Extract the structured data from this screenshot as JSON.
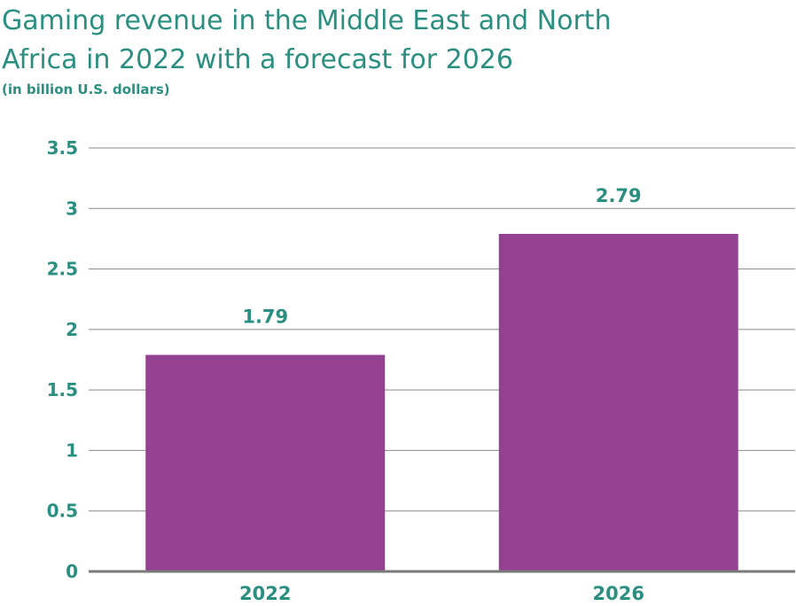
{
  "chart_data": {
    "type": "bar",
    "title_line1": "Gaming revenue in the Middle East and North",
    "title_line2": "Africa in 2022 with a forecast for 2026",
    "subtitle": "(in billion U.S. dollars)",
    "xlabel": "",
    "ylabel": "",
    "categories": [
      "2022",
      "2026"
    ],
    "values": [
      1.79,
      2.79
    ],
    "ylim": [
      0,
      3.5
    ],
    "yticks": [
      0,
      0.5,
      1,
      1.5,
      2,
      2.5,
      3,
      3.5
    ],
    "ytick_labels": [
      "0",
      "0.5",
      "1",
      "1.5",
      "2",
      "2.5",
      "3",
      "3.5"
    ],
    "grid": true,
    "legend": "none",
    "bar_color": "#954191",
    "text_color": "#2a8f80"
  }
}
